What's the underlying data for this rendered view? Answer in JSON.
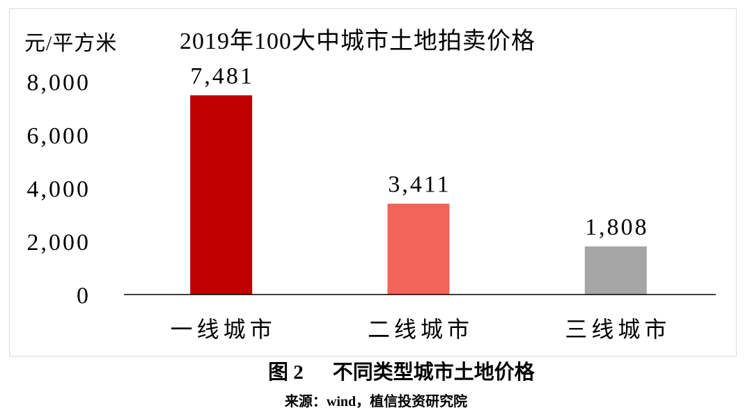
{
  "chart_data": {
    "type": "bar",
    "title": "2019年100大中城市土地拍卖价格",
    "ylabel": "元/平方米",
    "categories": [
      "一线城市",
      "二线城市",
      "三线城市"
    ],
    "values": [
      7481,
      3411,
      1808
    ],
    "data_labels": [
      "7,481",
      "3,411",
      "1,808"
    ],
    "bar_colors": [
      "#C00000",
      "#F0645A",
      "#A6A6A6"
    ],
    "ylim": [
      0,
      8000
    ],
    "yticks": [
      0,
      2000,
      4000,
      6000,
      8000
    ],
    "ytick_labels": [
      "0",
      "2,000",
      "4,000",
      "6,000",
      "8,000"
    ],
    "grid": false,
    "legend": false
  },
  "caption": {
    "figure_label": "图 2",
    "title": "不同类型城市土地价格"
  },
  "source": "来源：wind，植信投资研究院"
}
